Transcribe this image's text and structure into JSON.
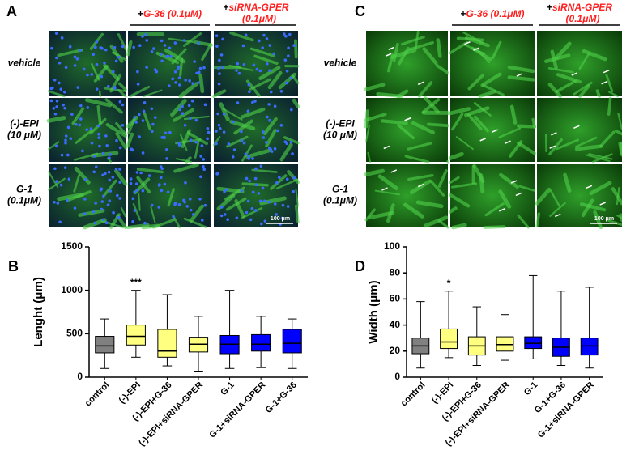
{
  "panels": [
    {
      "label": "A",
      "headers": [
        {
          "plus": "+",
          "lines": [
            "G-36 (0.1μM)"
          ]
        },
        {
          "plus": "+",
          "lines": [
            "siRNA-GPER",
            "(0.1μM)"
          ]
        }
      ],
      "rows": [
        [
          "vehicle"
        ],
        [
          "(-)-EPI",
          "(10 μM)"
        ],
        [
          "G-1",
          "(0.1μM)"
        ]
      ],
      "scale_bar": "100 μm"
    },
    {
      "label": "C",
      "headers": [
        {
          "plus": "+",
          "lines": [
            "G-36 (0.1μM)"
          ]
        },
        {
          "plus": "+",
          "lines": [
            "siRNA-GPER",
            "(0.1μM)"
          ]
        }
      ],
      "rows": [
        [
          "vehicle"
        ],
        [
          "(-)-EPI",
          "(10 μM)"
        ],
        [
          "G-1",
          "(0.1μM)"
        ]
      ],
      "scale_bar": "100 μm"
    }
  ],
  "chart_data": [
    {
      "type": "box",
      "label": "B",
      "y_label": "Lenght (μm)",
      "annotation": "***",
      "categories": [
        "control",
        "(-)-EPI",
        "(-)-EPI+G-36",
        "(-)-EPI+siRNA-GPER",
        "G-1",
        "G-1+siRNA-GPER",
        "G-1+G-36"
      ],
      "stats": [
        [
          100,
          280,
          360,
          470,
          670
        ],
        [
          230,
          370,
          470,
          600,
          1000
        ],
        [
          130,
          230,
          300,
          550,
          950
        ],
        [
          70,
          290,
          380,
          460,
          700
        ],
        [
          100,
          270,
          380,
          480,
          1000
        ],
        [
          110,
          300,
          380,
          490,
          700
        ],
        [
          100,
          280,
          390,
          550,
          670
        ]
      ],
      "colors": [
        "#808080",
        "#ffff80",
        "#ffff80",
        "#ffff80",
        "#0000ff",
        "#0000ff",
        "#0000ff"
      ],
      "ylim": [
        0,
        1500
      ],
      "yticks": [
        0,
        500,
        1000,
        1500
      ]
    },
    {
      "type": "box",
      "label": "D",
      "y_label": "Width (μm)",
      "annotation": "*",
      "categories": [
        "control",
        "(-)-EPI",
        "(-)-EPI+G-36",
        "(-)-EPI+siRNA-GPER",
        "G-1",
        "G-1+G-36",
        "G-1+siRNA-GPER"
      ],
      "stats": [
        [
          7,
          18,
          24,
          30,
          58
        ],
        [
          15,
          22,
          27,
          37,
          66
        ],
        [
          9,
          17,
          24,
          31,
          54
        ],
        [
          13,
          20,
          25,
          31,
          48
        ],
        [
          14,
          22,
          26,
          31,
          78
        ],
        [
          9,
          16,
          23,
          30,
          66
        ],
        [
          7,
          17,
          24,
          30,
          69
        ]
      ],
      "colors": [
        "#808080",
        "#ffff80",
        "#ffff80",
        "#ffff80",
        "#0000ff",
        "#0000ff",
        "#0000ff"
      ],
      "ylim": [
        0,
        100
      ],
      "yticks": [
        0,
        20,
        40,
        60,
        80,
        100
      ]
    }
  ]
}
